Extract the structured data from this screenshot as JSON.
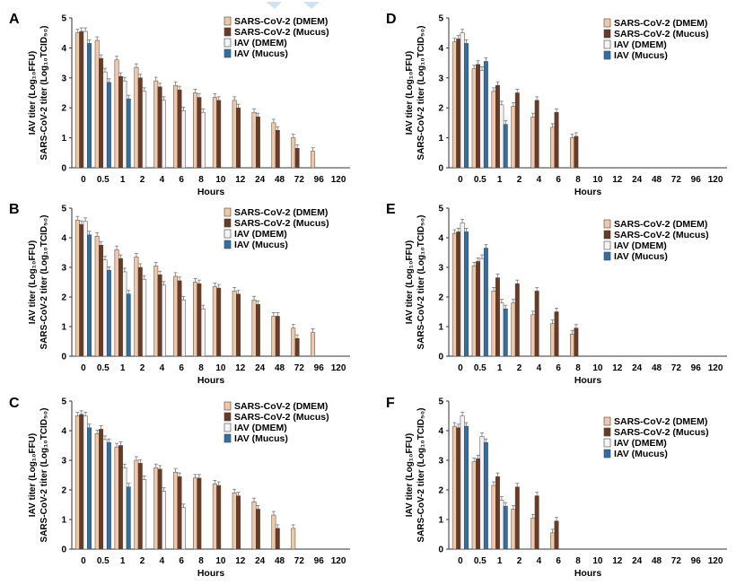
{
  "colors": {
    "sars_dmem": "#f0c8a8",
    "sars_mucus": "#6b3a22",
    "iav_dmem": "#f4f4f4",
    "iav_mucus": "#2f6fa8",
    "axis": "#333333",
    "error": "#777777",
    "watermark": "#cfe3ee"
  },
  "chart_data": [
    {
      "panel": "A",
      "type": "bar",
      "categories": [
        "0",
        "0.5",
        "1",
        "2",
        "4",
        "6",
        "8",
        "10",
        "12",
        "24",
        "48",
        "72",
        "96",
        "120"
      ],
      "xlabel": "Hours",
      "ylabel_line1": "IAV titer (Log₁₀FFU)",
      "ylabel_line2": "SARS-CoV-2 titer (Log₁₀TCID₅₀)",
      "ylim": [
        0,
        5
      ],
      "yticks": [
        "0",
        "1",
        "2",
        "3",
        "4",
        "5"
      ],
      "series": [
        {
          "name": "SARS-CoV-2 (DMEM)",
          "values": [
            4.5,
            4.25,
            3.6,
            3.35,
            2.9,
            2.75,
            2.5,
            2.35,
            2.25,
            1.85,
            1.5,
            1.0,
            0.55,
            0
          ]
        },
        {
          "name": "SARS-CoV-2 (Mucus)",
          "values": [
            4.55,
            3.65,
            3.05,
            3.0,
            2.7,
            2.6,
            2.35,
            2.25,
            2.0,
            1.7,
            1.25,
            0.65,
            0,
            0
          ]
        },
        {
          "name": "IAV (DMEM)",
          "values": [
            4.55,
            3.2,
            2.9,
            2.55,
            2.25,
            1.9,
            1.85,
            0,
            0,
            0,
            0,
            0,
            0,
            0
          ]
        },
        {
          "name": "IAV (Mucus)",
          "values": [
            4.15,
            2.85,
            2.3,
            0,
            0,
            0,
            0,
            0,
            0,
            0,
            0,
            0,
            0,
            0
          ]
        }
      ]
    },
    {
      "panel": "B",
      "type": "bar",
      "categories": [
        "0",
        "0.5",
        "1",
        "2",
        "4",
        "6",
        "8",
        "10",
        "12",
        "24",
        "48",
        "72",
        "96",
        "120"
      ],
      "xlabel": "Hours",
      "ylabel_line1": "IAV titer (Log₁₀FFU)",
      "ylabel_line2": "SARS-CoV-2 titer (Log₁₀TCID₅₀)",
      "ylim": [
        0,
        5
      ],
      "yticks": [
        "0",
        "1",
        "2",
        "3",
        "4",
        "5"
      ],
      "series": [
        {
          "name": "SARS-CoV-2 (DMEM)",
          "values": [
            4.6,
            4.05,
            3.6,
            3.35,
            3.05,
            2.7,
            2.5,
            2.35,
            2.2,
            1.9,
            1.35,
            0.95,
            0.8,
            0
          ]
        },
        {
          "name": "SARS-CoV-2 (Mucus)",
          "values": [
            4.45,
            3.75,
            3.3,
            3.0,
            2.75,
            2.55,
            2.45,
            2.3,
            2.1,
            1.75,
            1.35,
            0.6,
            0,
            0
          ]
        },
        {
          "name": "IAV (DMEM)",
          "values": [
            4.55,
            3.25,
            2.85,
            2.6,
            2.4,
            1.9,
            1.6,
            0,
            0,
            0,
            0,
            0,
            0,
            0
          ]
        },
        {
          "name": "IAV (Mucus)",
          "values": [
            4.1,
            2.9,
            2.1,
            0,
            0,
            0,
            0,
            0,
            0,
            0,
            0,
            0,
            0,
            0
          ]
        }
      ]
    },
    {
      "panel": "C",
      "type": "bar",
      "categories": [
        "0",
        "0.5",
        "1",
        "2",
        "4",
        "6",
        "8",
        "10",
        "12",
        "24",
        "48",
        "72",
        "96",
        "120"
      ],
      "xlabel": "Hours",
      "ylabel_line1": "IAV titer (Log₁₀FFU)",
      "ylabel_line2": "SARS-CoV-2 titer (Log₁₀TCID₅₀)",
      "ylim": [
        0,
        5
      ],
      "yticks": [
        "0",
        "1",
        "2",
        "3",
        "4",
        "5"
      ],
      "series": [
        {
          "name": "SARS-CoV-2 (DMEM)",
          "values": [
            4.5,
            3.9,
            3.45,
            3.0,
            2.75,
            2.6,
            2.4,
            2.2,
            1.9,
            1.6,
            1.15,
            0.7,
            0,
            0
          ]
        },
        {
          "name": "SARS-CoV-2 (Mucus)",
          "values": [
            4.55,
            4.05,
            3.5,
            2.9,
            2.7,
            2.45,
            2.4,
            2.15,
            1.8,
            1.35,
            0.7,
            0,
            0,
            0
          ]
        },
        {
          "name": "IAV (DMEM)",
          "values": [
            4.5,
            3.7,
            2.75,
            2.35,
            1.95,
            1.4,
            0,
            0,
            0,
            0,
            0,
            0,
            0,
            0
          ]
        },
        {
          "name": "IAV (Mucus)",
          "values": [
            4.1,
            3.6,
            2.1,
            0,
            0,
            0,
            0,
            0,
            0,
            0,
            0,
            0,
            0,
            0
          ]
        }
      ]
    },
    {
      "panel": "D",
      "type": "bar",
      "categories": [
        "0",
        "0.5",
        "1",
        "2",
        "4",
        "6",
        "8",
        "10",
        "12",
        "24",
        "48",
        "72",
        "96",
        "120"
      ],
      "xlabel": "Hours",
      "ylabel_line1": "IAV titer (Log₁₀FFU)",
      "ylabel_line2": "SARS-CoV-2 titer (Log₁₀TCID₅₀)",
      "ylim": [
        0,
        5
      ],
      "yticks": [
        "0",
        "1",
        "2",
        "3",
        "4",
        "5"
      ],
      "series": [
        {
          "name": "SARS-CoV-2 (DMEM)",
          "values": [
            4.2,
            3.3,
            2.55,
            2.05,
            1.7,
            1.35,
            1.0,
            0,
            0,
            0,
            0,
            0,
            0,
            0
          ]
        },
        {
          "name": "SARS-CoV-2 (Mucus)",
          "values": [
            4.3,
            3.45,
            2.75,
            2.5,
            2.25,
            1.85,
            1.05,
            0,
            0,
            0,
            0,
            0,
            0,
            0
          ]
        },
        {
          "name": "IAV (DMEM)",
          "values": [
            4.5,
            3.25,
            2.1,
            0,
            0,
            0,
            0,
            0,
            0,
            0,
            0,
            0,
            0,
            0
          ]
        },
        {
          "name": "IAV (Mucus)",
          "values": [
            4.15,
            3.55,
            1.45,
            0,
            0,
            0,
            0,
            0,
            0,
            0,
            0,
            0,
            0,
            0
          ]
        }
      ]
    },
    {
      "panel": "E",
      "type": "bar",
      "categories": [
        "0",
        "0.5",
        "1",
        "2",
        "4",
        "6",
        "8",
        "10",
        "12",
        "24",
        "48",
        "72",
        "96",
        "120"
      ],
      "xlabel": "Hours",
      "ylabel_line1": "IAV titer (Log₁₀FFU)",
      "ylabel_line2": "SARS-CoV-2 titer (Log₁₀TCID₅₀)",
      "ylim": [
        0,
        5
      ],
      "yticks": [
        "0",
        "1",
        "2",
        "3",
        "4",
        "5"
      ],
      "series": [
        {
          "name": "SARS-CoV-2 (DMEM)",
          "values": [
            4.15,
            3.05,
            2.2,
            1.8,
            1.4,
            1.1,
            0.75,
            0,
            0,
            0,
            0,
            0,
            0,
            0
          ]
        },
        {
          "name": "SARS-CoV-2 (Mucus)",
          "values": [
            4.2,
            3.2,
            2.65,
            2.45,
            2.2,
            1.5,
            0.95,
            0,
            0,
            0,
            0,
            0,
            0,
            0
          ]
        },
        {
          "name": "IAV (DMEM)",
          "values": [
            4.5,
            3.3,
            1.8,
            0,
            0,
            0,
            0,
            0,
            0,
            0,
            0,
            0,
            0,
            0
          ]
        },
        {
          "name": "IAV (Mucus)",
          "values": [
            4.2,
            3.65,
            1.6,
            0,
            0,
            0,
            0,
            0,
            0,
            0,
            0,
            0,
            0,
            0
          ]
        }
      ]
    },
    {
      "panel": "F",
      "type": "bar",
      "categories": [
        "0",
        "0.5",
        "1",
        "2",
        "4",
        "6",
        "8",
        "10",
        "12",
        "24",
        "48",
        "72",
        "96",
        "120"
      ],
      "xlabel": "Hours",
      "ylabel_line1": "IAV titer (Log₁₀FFU)",
      "ylabel_line2": "SARS-CoV-2 titer (Log₁₀TCID₅₀)",
      "ylim": [
        0,
        5
      ],
      "yticks": [
        "0",
        "1",
        "2",
        "3",
        "4",
        "5"
      ],
      "series": [
        {
          "name": "SARS-CoV-2 (DMEM)",
          "values": [
            4.15,
            2.95,
            2.15,
            1.35,
            1.05,
            0.55,
            0,
            0,
            0,
            0,
            0,
            0,
            0,
            0
          ]
        },
        {
          "name": "SARS-CoV-2 (Mucus)",
          "values": [
            4.1,
            3.05,
            2.45,
            2.1,
            1.8,
            0.95,
            0,
            0,
            0,
            0,
            0,
            0,
            0,
            0
          ]
        },
        {
          "name": "IAV (DMEM)",
          "values": [
            4.5,
            3.8,
            1.65,
            0,
            0,
            0,
            0,
            0,
            0,
            0,
            0,
            0,
            0,
            0
          ]
        },
        {
          "name": "IAV (Mucus)",
          "values": [
            4.15,
            3.6,
            1.45,
            0,
            0,
            0,
            0,
            0,
            0,
            0,
            0,
            0,
            0,
            0
          ]
        }
      ]
    }
  ]
}
